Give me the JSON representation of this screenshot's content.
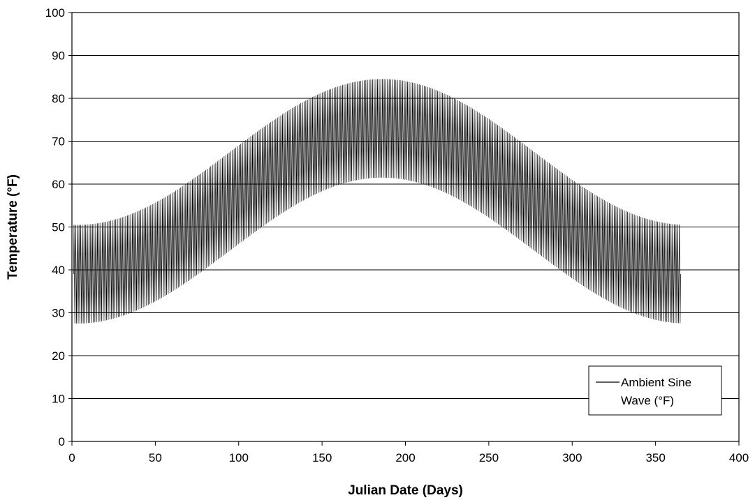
{
  "chart_data": {
    "type": "line",
    "title": "",
    "xlabel": "Julian Date (Days)",
    "ylabel": "Temperature (°F)",
    "xlim": [
      0,
      400
    ],
    "ylim": [
      0,
      100
    ],
    "x_ticks": [
      0,
      50,
      100,
      150,
      200,
      250,
      300,
      350,
      400
    ],
    "y_ticks": [
      0,
      10,
      20,
      30,
      40,
      50,
      60,
      70,
      80,
      90,
      100
    ],
    "grid": "horizontal",
    "legend_position": "bottom-right",
    "series": [
      {
        "name": "Ambient Sine Wave (°F)",
        "legend_lines": [
          "Ambient Sine",
          "Wave (°F)"
        ],
        "color": "#000000",
        "x_range": [
          1,
          365
        ],
        "peak_day": 186,
        "mean_low_high": [
          39,
          73
        ],
        "daily_swing": 11.5,
        "envelope_min": [
          27,
          62
        ],
        "envelope_max": [
          50,
          85
        ]
      }
    ]
  }
}
